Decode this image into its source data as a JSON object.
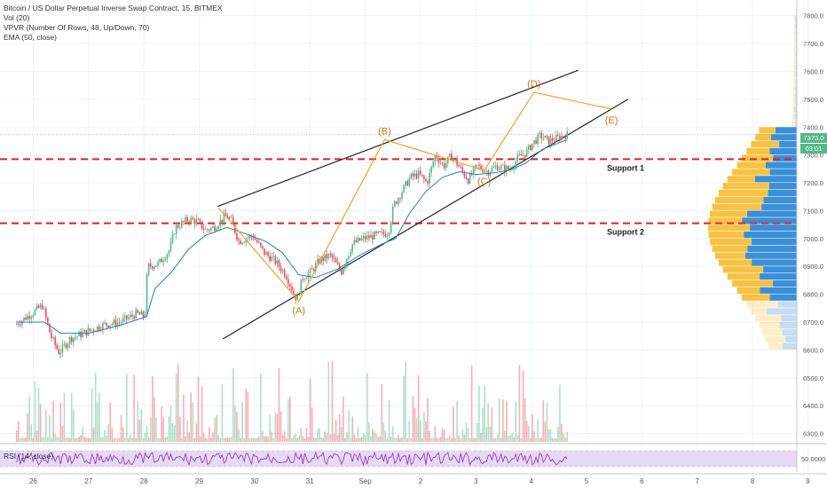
{
  "legend": {
    "title": "Bitcoin / US Dollar Perpetual Inverse Swap Contract, 15, BITMEX",
    "vol": "Vol (20)",
    "vpvr": "VPVR (Number Of Rows, 48, Up/Down, 70)",
    "ema": "EMA (50, close)"
  },
  "rsi_label": "RSI (14, close)",
  "price_badges": {
    "last": "7373.0",
    "countdown": "03:01"
  },
  "colors": {
    "candle_up": "#53b987",
    "candle_down": "#eb4d5c",
    "ema": "#2a7fb8",
    "wave": "#f0a030",
    "support": "#e02020",
    "trend": "#222222",
    "vp_up": "#f7c244",
    "vp_down": "#3a8fd8",
    "rsi_line": "#8e2cbf",
    "rsi_band": "#e6d9f3",
    "price_line": "#53b987"
  },
  "chart_data": {
    "type": "candlestick",
    "price_axis": {
      "ylim": [
        6270,
        7850
      ],
      "ticks": [
        "7800.0",
        "7700.0",
        "7600.0",
        "7500.0",
        "7400.0",
        "7300.0",
        "7200.0",
        "7100.0",
        "7000.0",
        "6900.0",
        "6800.0",
        "6700.0",
        "6600.0",
        "6500.0",
        "6400.0",
        "6300.0"
      ]
    },
    "x_axis": {
      "ticks": [
        "26",
        "27",
        "28",
        "29",
        "30",
        "31",
        "Sep",
        "2",
        "3",
        "4",
        "5",
        "6",
        "7",
        "8",
        "9"
      ]
    },
    "rsi_axis": {
      "ticks": [
        "50.0000"
      ]
    },
    "price_path": [
      [
        25.7,
        6690
      ],
      [
        26.0,
        6730
      ],
      [
        26.2,
        6760
      ],
      [
        26.35,
        6650
      ],
      [
        26.5,
        6590
      ],
      [
        26.7,
        6640
      ],
      [
        27.0,
        6665
      ],
      [
        27.3,
        6690
      ],
      [
        27.6,
        6700
      ],
      [
        27.9,
        6730
      ],
      [
        28.05,
        6720
      ],
      [
        28.1,
        6900
      ],
      [
        28.3,
        6910
      ],
      [
        28.5,
        6960
      ],
      [
        28.6,
        7040
      ],
      [
        28.85,
        7070
      ],
      [
        29.0,
        7060
      ],
      [
        29.15,
        7030
      ],
      [
        29.3,
        7040
      ],
      [
        29.5,
        7080
      ],
      [
        29.6,
        7070
      ],
      [
        29.75,
        6990
      ],
      [
        30.0,
        7010
      ],
      [
        30.2,
        6950
      ],
      [
        30.4,
        6920
      ],
      [
        30.6,
        6870
      ],
      [
        30.75,
        6800
      ],
      [
        30.8,
        6780
      ],
      [
        30.9,
        6860
      ],
      [
        31.05,
        6880
      ],
      [
        31.2,
        6920
      ],
      [
        31.4,
        6940
      ],
      [
        31.6,
        6880
      ],
      [
        31.8,
        6980
      ],
      [
        32.0,
        7000
      ],
      [
        32.2,
        7010
      ],
      [
        32.45,
        7020
      ],
      [
        32.55,
        7120
      ],
      [
        32.7,
        7170
      ],
      [
        32.85,
        7220
      ],
      [
        33.0,
        7230
      ],
      [
        33.15,
        7200
      ],
      [
        33.3,
        7300
      ],
      [
        33.45,
        7260
      ],
      [
        33.6,
        7300
      ],
      [
        33.75,
        7250
      ],
      [
        33.9,
        7210
      ],
      [
        34.05,
        7260
      ],
      [
        34.25,
        7240
      ],
      [
        34.4,
        7260
      ],
      [
        34.55,
        7250
      ],
      [
        34.65,
        7250
      ],
      [
        34.8,
        7290
      ],
      [
        34.95,
        7310
      ],
      [
        35.05,
        7340
      ],
      [
        35.2,
        7370
      ],
      [
        35.35,
        7350
      ],
      [
        35.5,
        7360
      ],
      [
        35.65,
        7373
      ]
    ],
    "ema_path": [
      [
        25.7,
        6700
      ],
      [
        26.2,
        6700
      ],
      [
        26.5,
        6660
      ],
      [
        27.0,
        6660
      ],
      [
        27.6,
        6690
      ],
      [
        28.05,
        6720
      ],
      [
        28.2,
        6820
      ],
      [
        28.5,
        6880
      ],
      [
        28.8,
        6960
      ],
      [
        29.1,
        7010
      ],
      [
        29.5,
        7040
      ],
      [
        29.8,
        7020
      ],
      [
        30.2,
        6990
      ],
      [
        30.5,
        6950
      ],
      [
        30.8,
        6870
      ],
      [
        31.1,
        6860
      ],
      [
        31.5,
        6890
      ],
      [
        31.9,
        6940
      ],
      [
        32.3,
        6980
      ],
      [
        32.55,
        7000
      ],
      [
        32.8,
        7090
      ],
      [
        33.1,
        7170
      ],
      [
        33.4,
        7220
      ],
      [
        33.7,
        7240
      ],
      [
        34.0,
        7230
      ],
      [
        34.3,
        7235
      ],
      [
        34.6,
        7245
      ],
      [
        34.9,
        7270
      ],
      [
        35.2,
        7320
      ],
      [
        35.65,
        7355
      ]
    ],
    "patterns": [
      {
        "type": "trendline",
        "points": [
          [
            29.33,
            7115
          ],
          [
            35.85,
            7604
          ]
        ]
      },
      {
        "type": "trendline",
        "points": [
          [
            29.43,
            6640
          ],
          [
            36.75,
            7500
          ]
        ]
      },
      {
        "type": "support",
        "price": 7285,
        "label": "Support 1"
      },
      {
        "type": "support",
        "price": 7055,
        "label": "Support 2"
      },
      {
        "type": "elliott",
        "points": [
          [
            29.35,
            7110
          ],
          [
            30.8,
            6775
          ],
          [
            32.35,
            7355
          ],
          [
            34.15,
            7245
          ],
          [
            35.05,
            7525
          ],
          [
            36.45,
            7465
          ]
        ],
        "labels": [
          "(A)",
          "(B)",
          "(C)",
          "(D)",
          "(E)"
        ]
      }
    ],
    "volume_profile_note": "VPVR histogram on right side of price pane",
    "volume": "Vol (20) bars along bottom of price pane",
    "rsi": "RSI (14, close) oscillating around 50"
  }
}
